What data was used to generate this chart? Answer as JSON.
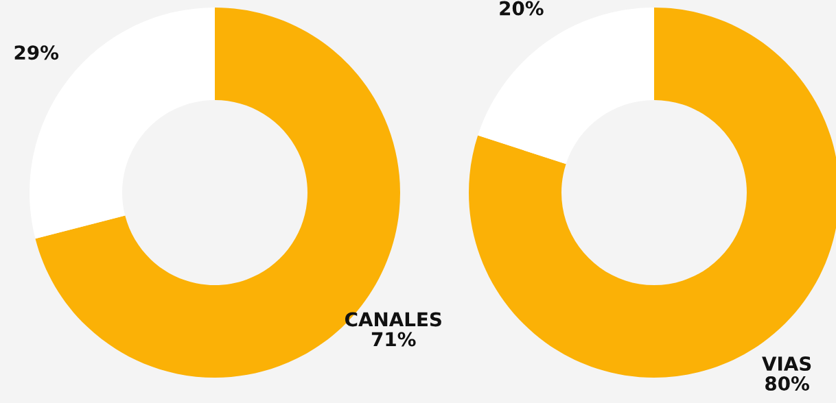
{
  "chart_data": [
    {
      "type": "donut",
      "categories": [
        "CANALES",
        null
      ],
      "values": [
        71,
        29
      ],
      "colors": [
        "#fbb106",
        "#ffffff"
      ],
      "value_labels": [
        "71%",
        "29%"
      ]
    },
    {
      "type": "donut",
      "categories": [
        "VIAS",
        null
      ],
      "values": [
        80,
        20
      ],
      "colors": [
        "#fbb106",
        "#ffffff"
      ],
      "value_labels": [
        "80%",
        "20%"
      ]
    }
  ]
}
